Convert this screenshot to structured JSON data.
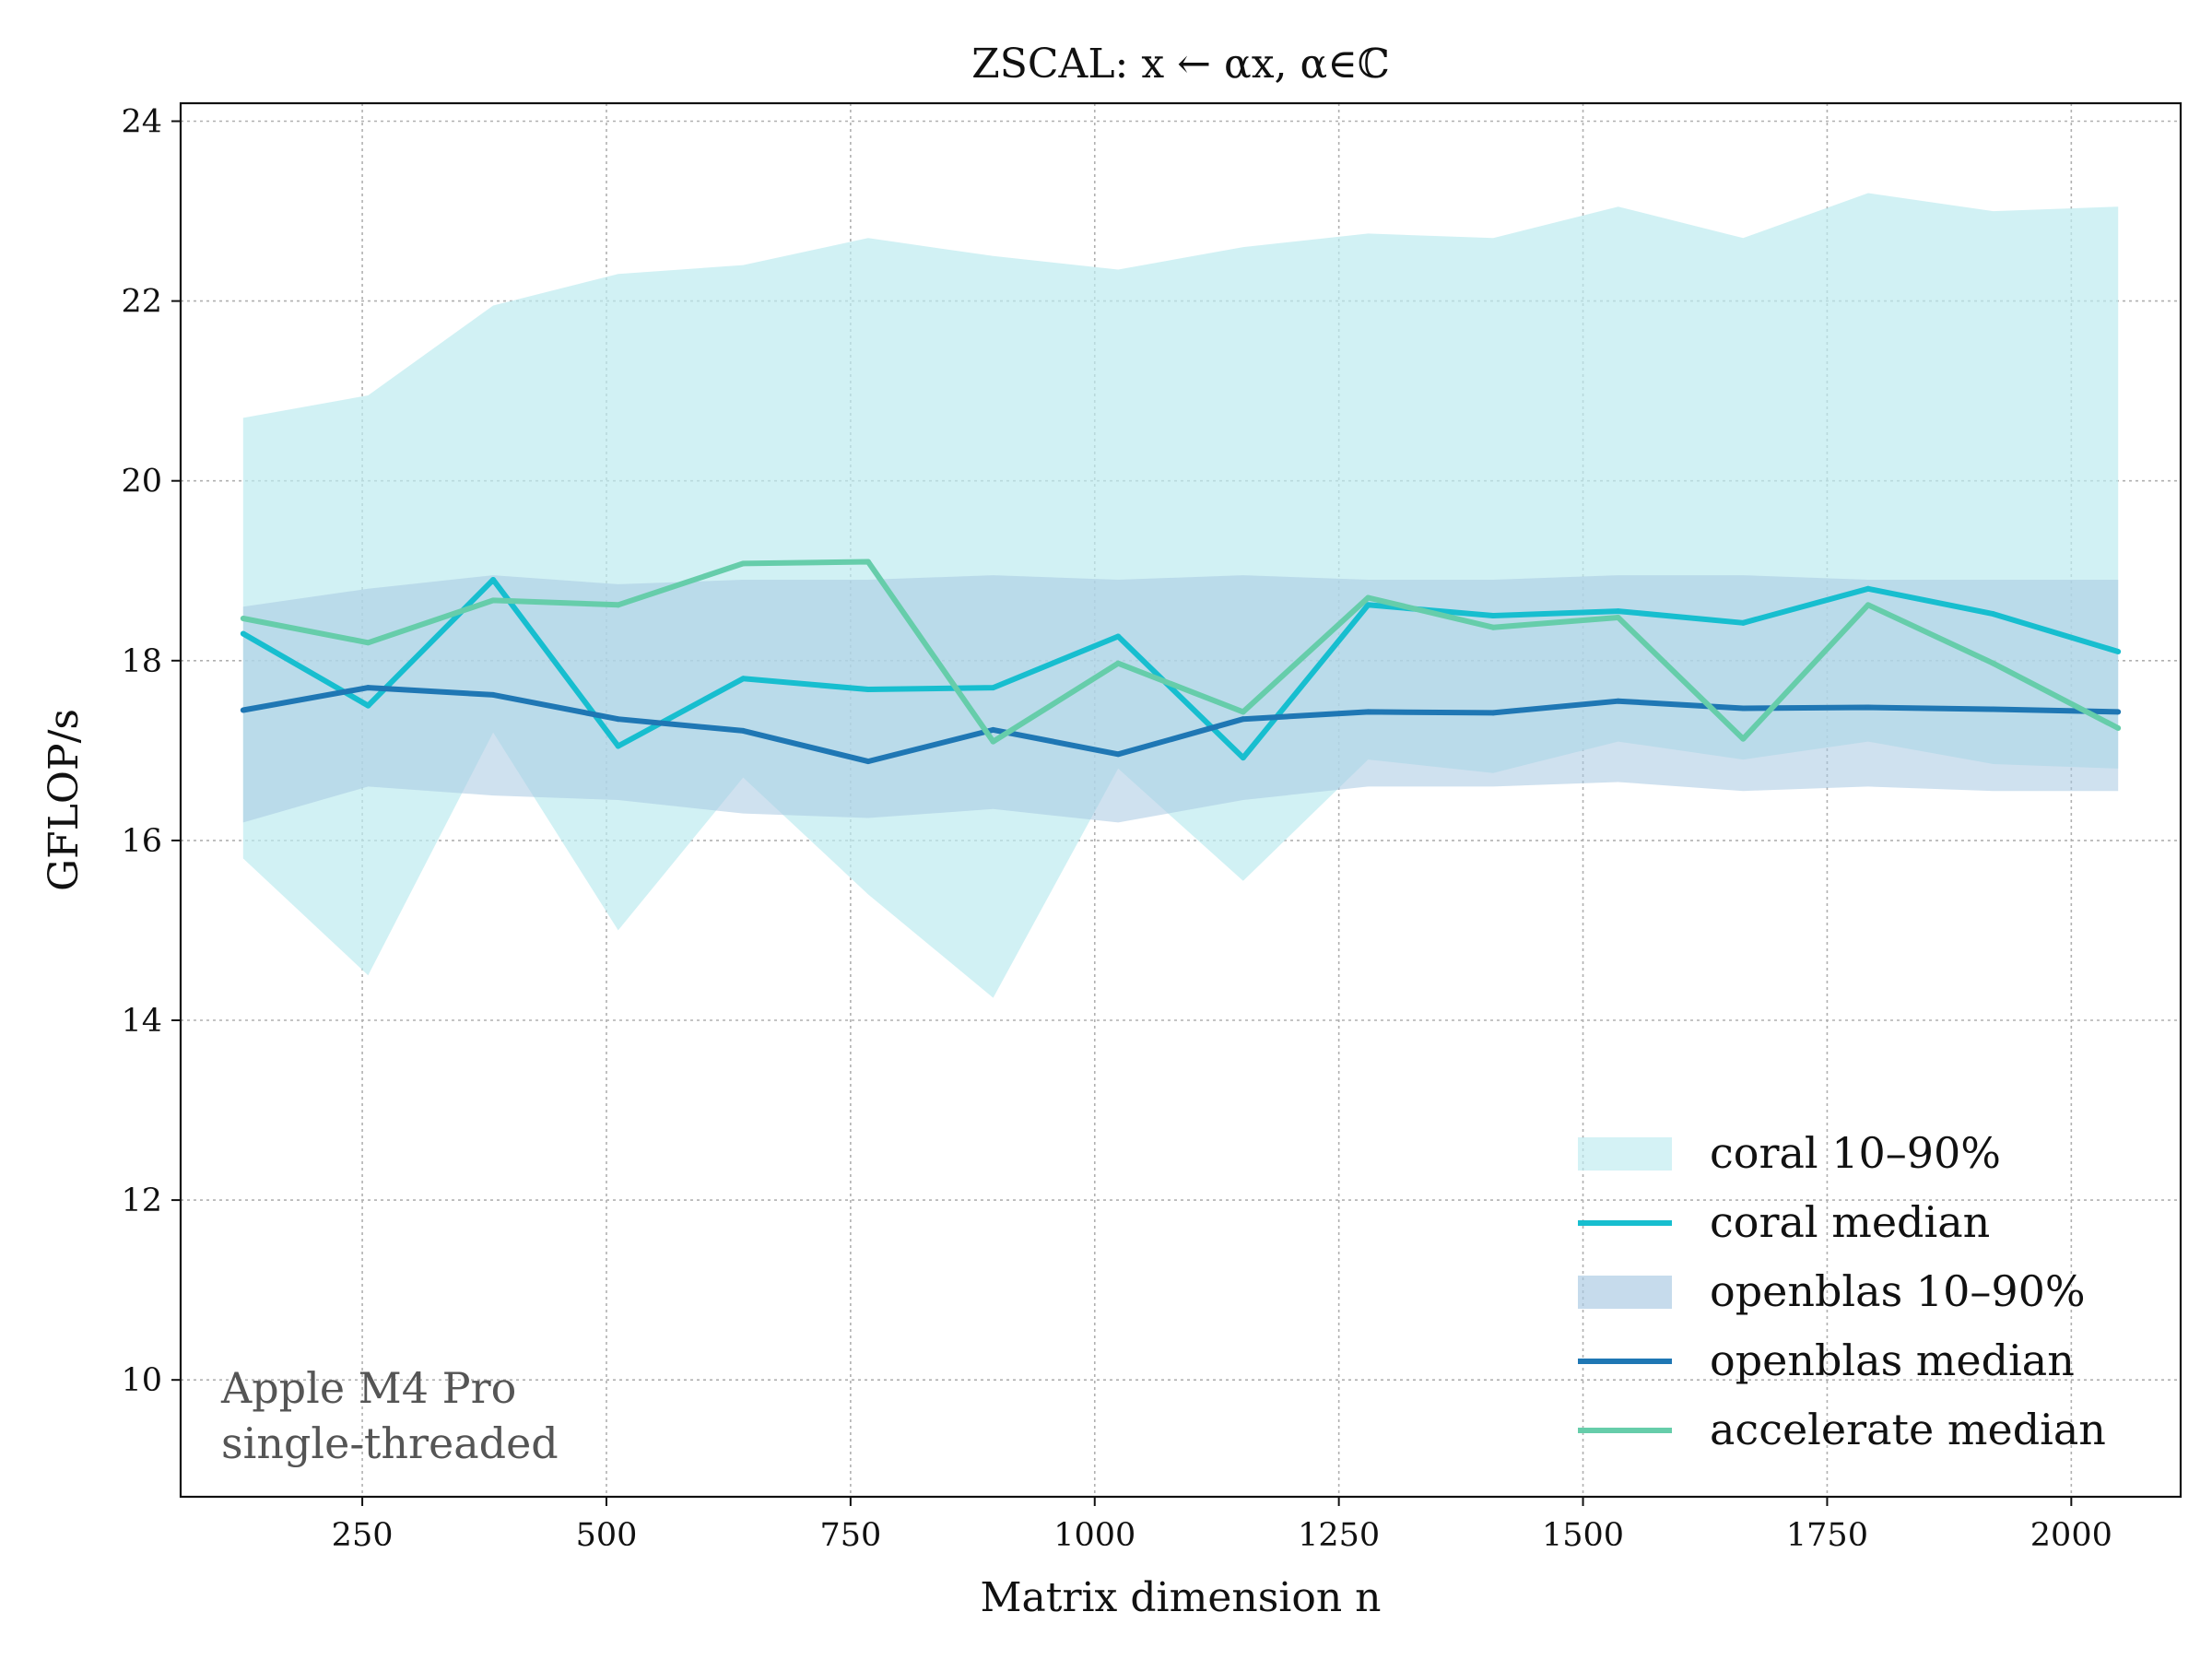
{
  "chart_data": {
    "type": "line",
    "title": "ZSCAL: x ← αx,   α∈ℂ",
    "xlabel": "Matrix dimension n",
    "ylabel": "GFLOP/s",
    "xlim": [
      64,
      2112
    ],
    "ylim": [
      8.7,
      24.2
    ],
    "xticks": [
      250,
      500,
      750,
      1000,
      1250,
      1500,
      1750,
      2000
    ],
    "yticks": [
      10,
      12,
      14,
      16,
      18,
      20,
      22,
      24
    ],
    "grid": true,
    "legend_position": "bottom-right",
    "annotation": [
      "Apple M4 Pro",
      "single-threaded"
    ],
    "x": [
      128,
      256,
      384,
      512,
      640,
      768,
      896,
      1024,
      1152,
      1280,
      1408,
      1536,
      1664,
      1792,
      1920,
      2048
    ],
    "bands": [
      {
        "name": "coral 10–90%",
        "color": "#bdebf0",
        "upper": [
          20.7,
          20.95,
          21.95,
          22.3,
          22.4,
          22.7,
          22.5,
          22.35,
          22.6,
          22.75,
          22.7,
          23.05,
          22.7,
          23.2,
          23.0,
          23.05
        ],
        "lower": [
          15.8,
          14.5,
          17.2,
          15.0,
          16.7,
          15.4,
          14.25,
          16.8,
          15.55,
          16.9,
          16.75,
          17.1,
          16.9,
          17.1,
          16.85,
          16.8
        ]
      },
      {
        "name": "openblas 10–90%",
        "color": "#a8c8e2",
        "upper": [
          18.6,
          18.8,
          18.95,
          18.85,
          18.9,
          18.9,
          18.95,
          18.9,
          18.95,
          18.9,
          18.9,
          18.95,
          18.95,
          18.9,
          18.9,
          18.9
        ],
        "lower": [
          16.2,
          16.6,
          16.5,
          16.45,
          16.3,
          16.25,
          16.35,
          16.2,
          16.45,
          16.6,
          16.6,
          16.65,
          16.55,
          16.6,
          16.55,
          16.55
        ]
      }
    ],
    "series": [
      {
        "name": "coral median",
        "color": "#17becf",
        "values": [
          18.3,
          17.5,
          18.9,
          17.05,
          17.8,
          17.68,
          17.7,
          18.27,
          16.92,
          18.62,
          18.5,
          18.55,
          18.42,
          18.8,
          18.52,
          18.1
        ]
      },
      {
        "name": "openblas median",
        "color": "#1f77b4",
        "values": [
          17.45,
          17.7,
          17.62,
          17.35,
          17.22,
          16.88,
          17.23,
          16.96,
          17.35,
          17.43,
          17.42,
          17.55,
          17.47,
          17.48,
          17.46,
          17.43
        ]
      },
      {
        "name": "accelerate median",
        "color": "#66cdaa",
        "values": [
          18.47,
          18.2,
          18.67,
          18.62,
          19.08,
          19.1,
          17.1,
          17.97,
          17.43,
          18.7,
          18.37,
          18.48,
          17.13,
          18.62,
          17.97,
          17.25
        ]
      }
    ],
    "legend": [
      {
        "label": "coral 10–90%",
        "kind": "band",
        "color": "#bdebf0"
      },
      {
        "label": "coral median",
        "kind": "line",
        "color": "#17becf"
      },
      {
        "label": "openblas 10–90%",
        "kind": "band",
        "color": "#a8c8e2"
      },
      {
        "label": "openblas median",
        "kind": "line",
        "color": "#1f77b4"
      },
      {
        "label": "accelerate median",
        "kind": "line",
        "color": "#66cdaa"
      }
    ]
  }
}
